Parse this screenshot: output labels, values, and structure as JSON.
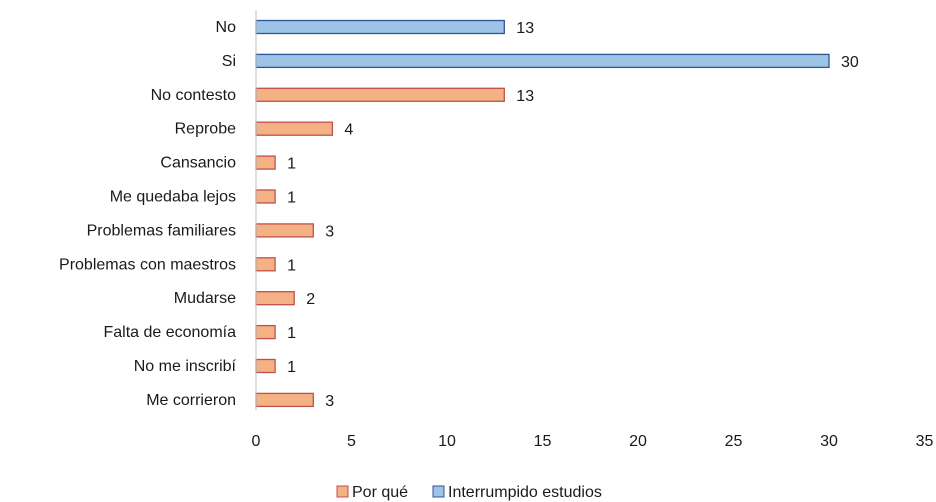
{
  "chart_data": {
    "type": "bar",
    "orientation": "horizontal",
    "categories": [
      "No",
      "Si",
      "No contesto",
      "Reprobe",
      "Cansancio",
      "Me quedaba lejos",
      "Problemas familiares",
      "Problemas con maestros",
      "Mudarse",
      "Falta de economía",
      "No me inscribí",
      "Me corrieron"
    ],
    "series": [
      {
        "name": "Por qué",
        "color": "#f4b183",
        "stroke": "#c0504d",
        "values": [
          null,
          null,
          13,
          4,
          1,
          1,
          3,
          1,
          2,
          1,
          1,
          3
        ]
      },
      {
        "name": "Interrumpido estudios",
        "color": "#9dc3e6",
        "stroke": "#2f5597",
        "values": [
          13,
          30,
          null,
          null,
          null,
          null,
          null,
          null,
          null,
          null,
          null,
          null
        ]
      }
    ],
    "xlim": [
      0,
      35
    ],
    "xticks": [
      0,
      5,
      10,
      15,
      20,
      25,
      30,
      35
    ],
    "grid": false,
    "legend_position": "bottom"
  }
}
